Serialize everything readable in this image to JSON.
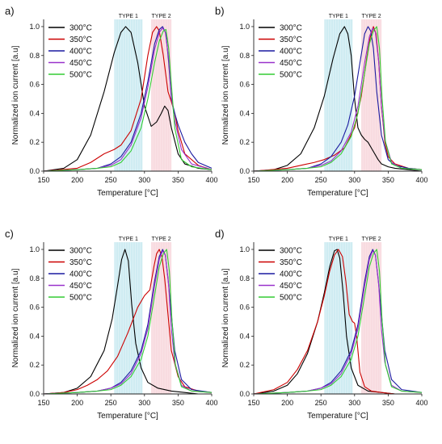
{
  "chart_data": [
    {
      "panel": "a)",
      "type": "line",
      "xlabel": "Temperature [°C]",
      "ylabel": "Normalized ion current [a.u]",
      "xlim": [
        150,
        400
      ],
      "ylim": [
        0,
        1.05
      ],
      "xticks": [
        150,
        200,
        250,
        300,
        350,
        400
      ],
      "yticks": [
        0.0,
        0.2,
        0.4,
        0.6,
        0.8,
        1.0
      ],
      "ytick_labels": [
        "0.0",
        "0.2",
        "0.4",
        "0.6",
        "0.8",
        "1.0"
      ],
      "legend": {
        "position": "top-left"
      },
      "bands": [
        {
          "label": "TYPE 1",
          "x0": 255,
          "x1": 297,
          "color": "#a8dde8"
        },
        {
          "label": "TYPE 2",
          "x0": 310,
          "x1": 340,
          "color": "#f2bcc4"
        }
      ],
      "series": [
        {
          "name": "300°C",
          "color": "#000000",
          "x": [
            150,
            180,
            200,
            220,
            240,
            255,
            265,
            272,
            280,
            290,
            300,
            310,
            318,
            325,
            330,
            335,
            340,
            350,
            360,
            380,
            400
          ],
          "y": [
            0,
            0.02,
            0.08,
            0.25,
            0.55,
            0.82,
            0.96,
            1.0,
            0.96,
            0.75,
            0.45,
            0.31,
            0.34,
            0.4,
            0.45,
            0.42,
            0.3,
            0.12,
            0.05,
            0.02,
            0.01
          ]
        },
        {
          "name": "350°C",
          "color": "#cc0000",
          "x": [
            150,
            200,
            220,
            240,
            255,
            265,
            280,
            295,
            305,
            312,
            318,
            322,
            328,
            335,
            340,
            345,
            350,
            360,
            380,
            400
          ],
          "y": [
            0,
            0.02,
            0.06,
            0.12,
            0.15,
            0.18,
            0.28,
            0.5,
            0.8,
            0.96,
            1.0,
            0.97,
            0.8,
            0.55,
            0.48,
            0.4,
            0.28,
            0.12,
            0.04,
            0.01
          ]
        },
        {
          "name": "400°C",
          "color": "#1a1aa0",
          "x": [
            150,
            200,
            230,
            250,
            265,
            280,
            295,
            305,
            315,
            322,
            327,
            332,
            336,
            340,
            345,
            350,
            360,
            370,
            380,
            400
          ],
          "y": [
            0,
            0.01,
            0.02,
            0.05,
            0.1,
            0.2,
            0.4,
            0.62,
            0.88,
            0.98,
            1.0,
            0.95,
            0.75,
            0.5,
            0.4,
            0.32,
            0.2,
            0.12,
            0.06,
            0.02
          ]
        },
        {
          "name": "450°C",
          "color": "#9932cc",
          "x": [
            150,
            200,
            230,
            250,
            265,
            280,
            295,
            305,
            315,
            322,
            327,
            331,
            336,
            340,
            345,
            355,
            370,
            400
          ],
          "y": [
            0,
            0.01,
            0.02,
            0.04,
            0.08,
            0.18,
            0.37,
            0.58,
            0.84,
            0.96,
            0.99,
            0.96,
            0.78,
            0.52,
            0.35,
            0.15,
            0.05,
            0.01
          ]
        },
        {
          "name": "500°C",
          "color": "#33cc33",
          "x": [
            150,
            200,
            230,
            250,
            265,
            280,
            295,
            305,
            315,
            322,
            328,
            332,
            336,
            340,
            345,
            355,
            370,
            400
          ],
          "y": [
            0,
            0.01,
            0.02,
            0.03,
            0.06,
            0.14,
            0.3,
            0.5,
            0.75,
            0.9,
            0.97,
            0.98,
            0.85,
            0.6,
            0.3,
            0.08,
            0.03,
            0.01
          ]
        }
      ]
    },
    {
      "panel": "b)",
      "type": "line",
      "xlabel": "Temperature [°C]",
      "ylabel": "Normalized ion current [a.u]",
      "xlim": [
        150,
        400
      ],
      "ylim": [
        0,
        1.05
      ],
      "xticks": [
        150,
        200,
        250,
        300,
        350,
        400
      ],
      "yticks": [
        0.0,
        0.2,
        0.4,
        0.6,
        0.8,
        1.0
      ],
      "ytick_labels": [
        "0.0",
        "0.2",
        "0.4",
        "0.6",
        "0.8",
        "1.0"
      ],
      "legend": {
        "position": "top-left"
      },
      "bands": [
        {
          "label": "TYPE 1",
          "x0": 255,
          "x1": 297,
          "color": "#a8dde8"
        },
        {
          "label": "TYPE 2",
          "x0": 310,
          "x1": 340,
          "color": "#f2bcc4"
        }
      ],
      "series": [
        {
          "name": "300°C",
          "color": "#000000",
          "x": [
            150,
            180,
            200,
            220,
            240,
            255,
            268,
            278,
            285,
            290,
            295,
            300,
            305,
            310,
            315,
            320,
            325,
            330,
            335,
            340,
            350,
            360,
            380,
            400
          ],
          "y": [
            0,
            0.01,
            0.04,
            0.12,
            0.3,
            0.52,
            0.78,
            0.95,
            1.0,
            0.95,
            0.8,
            0.5,
            0.3,
            0.25,
            0.22,
            0.2,
            0.16,
            0.12,
            0.08,
            0.05,
            0.03,
            0.02,
            0.01,
            0
          ]
        },
        {
          "name": "350°C",
          "color": "#cc0000",
          "x": [
            150,
            200,
            220,
            240,
            255,
            270,
            285,
            300,
            310,
            318,
            323,
            328,
            332,
            336,
            340,
            345,
            350,
            360,
            380,
            400
          ],
          "y": [
            0,
            0.02,
            0.04,
            0.06,
            0.08,
            0.11,
            0.16,
            0.3,
            0.52,
            0.78,
            0.92,
            1.0,
            0.95,
            0.75,
            0.45,
            0.2,
            0.1,
            0.05,
            0.02,
            0.01
          ]
        },
        {
          "name": "400°C",
          "color": "#1a1aa0",
          "x": [
            150,
            200,
            230,
            250,
            265,
            280,
            290,
            300,
            308,
            315,
            320,
            324,
            328,
            333,
            340,
            350,
            360,
            380,
            400
          ],
          "y": [
            0,
            0.01,
            0.02,
            0.05,
            0.1,
            0.2,
            0.32,
            0.52,
            0.75,
            0.95,
            1.0,
            0.97,
            0.85,
            0.55,
            0.25,
            0.08,
            0.04,
            0.02,
            0.01
          ]
        },
        {
          "name": "450°C",
          "color": "#9932cc",
          "x": [
            150,
            200,
            230,
            250,
            265,
            280,
            295,
            305,
            315,
            322,
            327,
            331,
            336,
            340,
            345,
            355,
            370,
            400
          ],
          "y": [
            0,
            0.01,
            0.02,
            0.04,
            0.07,
            0.14,
            0.27,
            0.45,
            0.75,
            0.93,
            0.99,
            0.96,
            0.75,
            0.45,
            0.22,
            0.06,
            0.02,
            0.01
          ]
        },
        {
          "name": "500°C",
          "color": "#33cc33",
          "x": [
            150,
            200,
            230,
            250,
            265,
            280,
            295,
            305,
            315,
            322,
            328,
            333,
            337,
            341,
            346,
            355,
            370,
            400
          ],
          "y": [
            0,
            0.01,
            0.02,
            0.03,
            0.06,
            0.12,
            0.24,
            0.4,
            0.68,
            0.88,
            0.97,
            1.0,
            0.85,
            0.5,
            0.2,
            0.05,
            0.02,
            0.01
          ]
        }
      ]
    },
    {
      "panel": "c)",
      "type": "line",
      "xlabel": "Temperature [°C]",
      "ylabel": "Normalized ion current [a.u]",
      "xlim": [
        150,
        400
      ],
      "ylim": [
        0,
        1.05
      ],
      "xticks": [
        150,
        200,
        250,
        300,
        350,
        400
      ],
      "yticks": [
        0.0,
        0.2,
        0.4,
        0.6,
        0.8,
        1.0
      ],
      "ytick_labels": [
        "0.0",
        "0.2",
        "0.4",
        "0.6",
        "0.8",
        "1.0"
      ],
      "legend": {
        "position": "top-left"
      },
      "bands": [
        {
          "label": "TYPE 1",
          "x0": 255,
          "x1": 297,
          "color": "#a8dde8"
        },
        {
          "label": "TYPE 2",
          "x0": 310,
          "x1": 340,
          "color": "#f2bcc4"
        }
      ],
      "series": [
        {
          "name": "300°C",
          "color": "#000000",
          "x": [
            150,
            180,
            200,
            220,
            240,
            252,
            260,
            266,
            271,
            276,
            281,
            287,
            295,
            305,
            320,
            340,
            360,
            380,
            400
          ],
          "y": [
            0,
            0.01,
            0.04,
            0.12,
            0.3,
            0.52,
            0.75,
            0.93,
            1.0,
            0.92,
            0.62,
            0.35,
            0.18,
            0.08,
            0.04,
            0.02,
            0.01,
            0,
            0
          ]
        },
        {
          "name": "350°C",
          "color": "#cc0000",
          "x": [
            150,
            180,
            200,
            215,
            230,
            245,
            260,
            275,
            290,
            300,
            308,
            314,
            318,
            322,
            326,
            330,
            335,
            340,
            350,
            360,
            380,
            400
          ],
          "y": [
            0,
            0.01,
            0.03,
            0.06,
            0.1,
            0.16,
            0.26,
            0.42,
            0.6,
            0.68,
            0.72,
            0.88,
            0.97,
            1.0,
            0.95,
            0.8,
            0.55,
            0.3,
            0.12,
            0.05,
            0.02,
            0.01
          ]
        },
        {
          "name": "400°C",
          "color": "#1a1aa0",
          "x": [
            150,
            200,
            230,
            250,
            265,
            280,
            295,
            305,
            315,
            322,
            327,
            331,
            335,
            340,
            345,
            355,
            370,
            400
          ],
          "y": [
            0,
            0.01,
            0.02,
            0.04,
            0.08,
            0.16,
            0.3,
            0.48,
            0.78,
            0.95,
            1.0,
            0.96,
            0.8,
            0.55,
            0.3,
            0.1,
            0.03,
            0.01
          ]
        },
        {
          "name": "450°C",
          "color": "#9932cc",
          "x": [
            150,
            200,
            230,
            250,
            265,
            280,
            295,
            305,
            315,
            322,
            327,
            331,
            336,
            340,
            345,
            355,
            370,
            400
          ],
          "y": [
            0,
            0.01,
            0.02,
            0.04,
            0.07,
            0.14,
            0.28,
            0.45,
            0.75,
            0.93,
            0.99,
            0.96,
            0.75,
            0.45,
            0.22,
            0.06,
            0.02,
            0.01
          ]
        },
        {
          "name": "500°C",
          "color": "#33cc33",
          "x": [
            150,
            200,
            230,
            250,
            265,
            280,
            295,
            305,
            315,
            322,
            328,
            333,
            337,
            341,
            346,
            355,
            370,
            400
          ],
          "y": [
            0,
            0.01,
            0.02,
            0.03,
            0.06,
            0.12,
            0.24,
            0.4,
            0.68,
            0.88,
            0.97,
            1.0,
            0.85,
            0.5,
            0.2,
            0.05,
            0.02,
            0.01
          ]
        }
      ]
    },
    {
      "panel": "d)",
      "type": "line",
      "xlabel": "Temperature [°C]",
      "ylabel": "Normalized ion current [a.u]",
      "xlim": [
        150,
        400
      ],
      "ylim": [
        0,
        1.05
      ],
      "xticks": [
        150,
        200,
        250,
        300,
        350,
        400
      ],
      "yticks": [
        0.0,
        0.2,
        0.4,
        0.6,
        0.8,
        1.0
      ],
      "ytick_labels": [
        "0.0",
        "0.2",
        "0.4",
        "0.6",
        "0.8",
        "1.0"
      ],
      "legend": {
        "position": "top-left"
      },
      "bands": [
        {
          "label": "TYPE 1",
          "x0": 255,
          "x1": 297,
          "color": "#a8dde8"
        },
        {
          "label": "TYPE 2",
          "x0": 310,
          "x1": 340,
          "color": "#f2bcc4"
        }
      ],
      "series": [
        {
          "name": "300°C",
          "color": "#000000",
          "x": [
            150,
            180,
            200,
            215,
            230,
            245,
            255,
            263,
            270,
            274,
            278,
            283,
            288,
            295,
            305,
            320,
            340,
            360,
            400
          ],
          "y": [
            0,
            0.02,
            0.06,
            0.14,
            0.28,
            0.5,
            0.7,
            0.88,
            0.99,
            1.0,
            0.94,
            0.7,
            0.4,
            0.18,
            0.06,
            0.02,
            0.01,
            0,
            0
          ]
        },
        {
          "name": "350°C",
          "color": "#cc0000",
          "x": [
            150,
            180,
            200,
            215,
            230,
            245,
            255,
            263,
            270,
            276,
            282,
            287,
            292,
            297,
            300,
            303,
            308,
            315,
            325,
            340,
            360,
            400
          ],
          "y": [
            0,
            0.03,
            0.08,
            0.17,
            0.3,
            0.5,
            0.68,
            0.85,
            0.96,
            1.0,
            0.95,
            0.78,
            0.55,
            0.5,
            0.49,
            0.4,
            0.15,
            0.05,
            0.02,
            0.01,
            0,
            0
          ]
        },
        {
          "name": "400°C",
          "color": "#1a1aa0",
          "x": [
            150,
            200,
            230,
            250,
            265,
            280,
            295,
            305,
            315,
            322,
            327,
            331,
            335,
            340,
            345,
            355,
            370,
            400
          ],
          "y": [
            0,
            0.01,
            0.02,
            0.04,
            0.08,
            0.16,
            0.3,
            0.48,
            0.78,
            0.95,
            1.0,
            0.96,
            0.8,
            0.55,
            0.3,
            0.1,
            0.03,
            0.01
          ]
        },
        {
          "name": "450°C",
          "color": "#9932cc",
          "x": [
            150,
            200,
            230,
            250,
            265,
            280,
            295,
            305,
            315,
            322,
            327,
            331,
            336,
            340,
            345,
            355,
            370,
            400
          ],
          "y": [
            0,
            0.01,
            0.02,
            0.04,
            0.07,
            0.14,
            0.28,
            0.45,
            0.75,
            0.93,
            0.99,
            0.96,
            0.75,
            0.45,
            0.22,
            0.06,
            0.02,
            0.01
          ]
        },
        {
          "name": "500°C",
          "color": "#33cc33",
          "x": [
            150,
            200,
            230,
            250,
            265,
            280,
            295,
            305,
            315,
            322,
            328,
            333,
            337,
            341,
            346,
            355,
            370,
            400
          ],
          "y": [
            0,
            0.01,
            0.02,
            0.03,
            0.06,
            0.12,
            0.24,
            0.4,
            0.68,
            0.88,
            0.97,
            1.0,
            0.85,
            0.5,
            0.2,
            0.05,
            0.02,
            0.01
          ]
        }
      ]
    }
  ]
}
